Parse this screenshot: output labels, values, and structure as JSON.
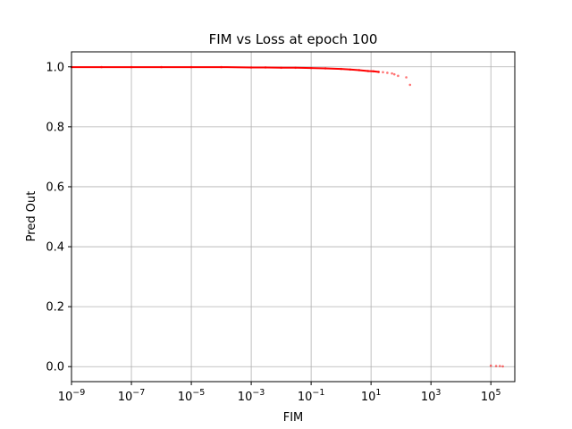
{
  "chart_data": {
    "type": "scatter",
    "title": "FIM vs Loss at epoch 100",
    "xlabel": "FIM",
    "ylabel": "Pred Out",
    "xscale": "log",
    "xlim": [
      1e-09,
      630000
    ],
    "ylim": [
      -0.05,
      1.05
    ],
    "grid": true,
    "x_ticks": [
      {
        "base": "10",
        "exp": "−9",
        "value": 1e-09
      },
      {
        "base": "10",
        "exp": "−7",
        "value": 1e-07
      },
      {
        "base": "10",
        "exp": "−5",
        "value": 1e-05
      },
      {
        "base": "10",
        "exp": "−3",
        "value": 0.001
      },
      {
        "base": "10",
        "exp": "−1",
        "value": 0.1
      },
      {
        "base": "10",
        "exp": "1",
        "value": 10
      },
      {
        "base": "10",
        "exp": "3",
        "value": 1000
      },
      {
        "base": "10",
        "exp": "5",
        "value": 100000
      }
    ],
    "y_ticks": [
      {
        "label": "0.0",
        "value": 0.0
      },
      {
        "label": "0.2",
        "value": 0.2
      },
      {
        "label": "0.4",
        "value": 0.4
      },
      {
        "label": "0.6",
        "value": 0.6
      },
      {
        "label": "0.8",
        "value": 0.8
      },
      {
        "label": "1.0",
        "value": 1.0
      }
    ],
    "series": [
      {
        "color": "#ff0000",
        "points": [
          [
            1e-09,
            0.999
          ],
          [
            1e-08,
            0.999
          ],
          [
            1e-07,
            0.999
          ],
          [
            1e-06,
            0.999
          ],
          [
            1e-05,
            0.999
          ],
          [
            0.0001,
            0.999
          ],
          [
            0.001,
            0.998
          ],
          [
            0.003,
            0.998
          ],
          [
            0.01,
            0.997
          ],
          [
            0.03,
            0.997
          ],
          [
            0.1,
            0.996
          ],
          [
            0.3,
            0.995
          ],
          [
            1,
            0.993
          ],
          [
            2,
            0.991
          ],
          [
            4,
            0.989
          ],
          [
            8,
            0.986
          ],
          [
            12,
            0.985
          ],
          [
            18,
            0.983
          ],
          [
            25,
            0.982
          ],
          [
            35,
            0.98
          ],
          [
            50,
            0.978
          ],
          [
            60,
            0.975
          ],
          [
            80,
            0.97
          ],
          [
            150,
            0.965
          ],
          [
            200,
            0.94
          ],
          [
            100000,
            0.003
          ],
          [
            150000,
            0.002
          ],
          [
            200000,
            0.002
          ],
          [
            250000,
            0.001
          ]
        ]
      }
    ]
  }
}
